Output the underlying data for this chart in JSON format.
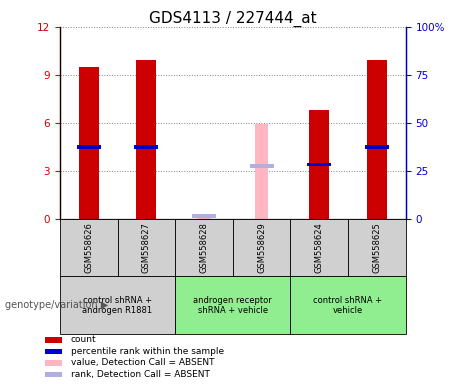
{
  "title": "GDS4113 / 227444_at",
  "samples": [
    "GSM558626",
    "GSM558627",
    "GSM558628",
    "GSM558629",
    "GSM558624",
    "GSM558625"
  ],
  "red_bar_heights": [
    9.5,
    9.9,
    0,
    0,
    6.8,
    9.9
  ],
  "blue_marker_values": [
    4.5,
    4.5,
    0,
    0,
    3.4,
    4.5
  ],
  "pink_bar_heights": [
    0,
    0,
    0.25,
    5.9,
    0,
    0
  ],
  "lavender_marker_values": [
    0,
    0,
    0.18,
    3.3,
    0,
    0
  ],
  "absent_samples": [
    2,
    3
  ],
  "ylim_left": [
    0,
    12
  ],
  "ylim_right": [
    0,
    100
  ],
  "yticks_left": [
    0,
    3,
    6,
    9,
    12
  ],
  "ytick_labels_left": [
    "0",
    "3",
    "6",
    "9",
    "12"
  ],
  "yticks_right": [
    0,
    25,
    50,
    75,
    100
  ],
  "ytick_labels_right": [
    "0",
    "25",
    "50",
    "75",
    "100%"
  ],
  "group_configs": [
    {
      "indices": [
        0,
        1
      ],
      "color": "#d0d0d0",
      "label": "control shRNA +\nandrogen R1881"
    },
    {
      "indices": [
        2,
        3
      ],
      "color": "#90ee90",
      "label": "androgen receptor\nshRNA + vehicle"
    },
    {
      "indices": [
        4,
        5
      ],
      "color": "#90ee90",
      "label": "control shRNA +\nvehicle"
    }
  ],
  "sample_box_color": "#d0d0d0",
  "genotype_label": "genotype/variation",
  "legend_items": [
    {
      "color": "#cc0000",
      "label": "count"
    },
    {
      "color": "#0000cc",
      "label": "percentile rank within the sample"
    },
    {
      "color": "#ffb6c1",
      "label": "value, Detection Call = ABSENT"
    },
    {
      "color": "#b0b0e0",
      "label": "rank, Detection Call = ABSENT"
    }
  ],
  "bar_width": 0.35,
  "red_color": "#cc0000",
  "blue_color": "#0000cc",
  "pink_color": "#ffb6c1",
  "lavender_color": "#b0b0e0",
  "title_fontsize": 11,
  "axis_color_left": "#cc0000",
  "axis_color_right": "#0000cc",
  "grid_color": "#808080"
}
